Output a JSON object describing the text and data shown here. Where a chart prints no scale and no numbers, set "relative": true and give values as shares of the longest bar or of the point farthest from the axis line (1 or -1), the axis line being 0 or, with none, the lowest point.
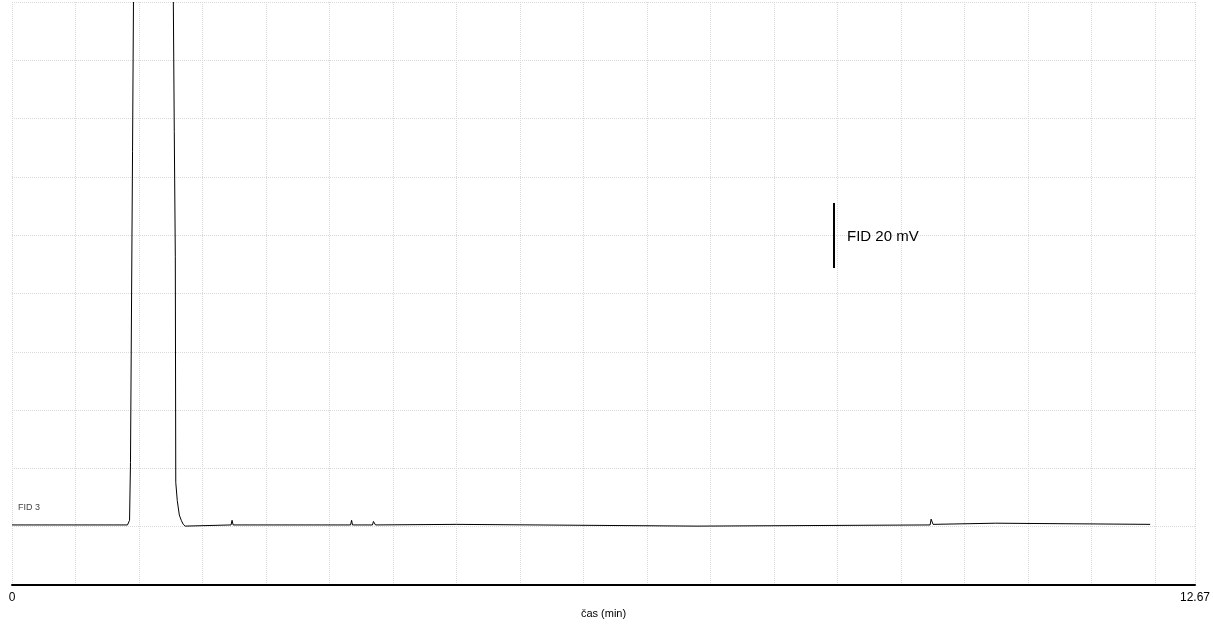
{
  "chart_data": {
    "type": "line",
    "xlabel": "čas (min)",
    "relative": true,
    "annotations": [
      "FID 3",
      "FID 20 mV"
    ],
    "xlim": [
      0,
      12.67
    ],
    "xticks": [
      0,
      {
        "value": 0.68,
        "label": null
      },
      {
        "value": 1.36,
        "label": null
      },
      {
        "value": 2.04,
        "label": null
      },
      {
        "value": 2.72,
        "label": null
      },
      {
        "value": 3.4,
        "label": null
      },
      {
        "value": 4.08,
        "label": null
      },
      {
        "value": 4.76,
        "label": null
      },
      {
        "value": 5.44,
        "label": null
      },
      {
        "value": 6.12,
        "label": null
      },
      {
        "value": 6.8,
        "label": null
      },
      {
        "value": 7.48,
        "label": null
      },
      {
        "value": 8.16,
        "label": null
      },
      {
        "value": 8.84,
        "label": null
      },
      {
        "value": 9.52,
        "label": null
      },
      {
        "value": 10.2,
        "label": null
      },
      {
        "value": 10.88,
        "label": null
      },
      {
        "value": 11.56,
        "label": null
      },
      {
        "value": 12.24,
        "label": null
      },
      12.67
    ],
    "grid": true,
    "marker": "none",
    "line_style": "solid",
    "series": [
      {
        "color": "#000000",
        "x": [
          0,
          1.237,
          1.259,
          1.269,
          1.291,
          1.301,
          1.5,
          1.728,
          1.738,
          1.749,
          1.754,
          1.77,
          1.792,
          1.813,
          1.834,
          1.856,
          2.346,
          2.357,
          2.368,
          3.626,
          3.637,
          3.647,
          3.861,
          3.871,
          3.893,
          4.757,
          7.337,
          9.833,
          9.844,
          9.865,
          10.537,
          12.19
        ],
        "values": [
          0.103,
          0.103,
          0.111,
          0.21,
          0.744,
          1,
          null,
          1,
          0.778,
          0.564,
          0.176,
          0.145,
          0.12,
          0.111,
          0.104,
          0.101,
          0.103,
          0.111,
          0.103,
          0.103,
          0.111,
          0.103,
          0.103,
          0.109,
          0.103,
          0.104,
          0.101,
          0.103,
          0.113,
          0.104,
          0.106,
          0.104
        ]
      }
    ]
  }
}
